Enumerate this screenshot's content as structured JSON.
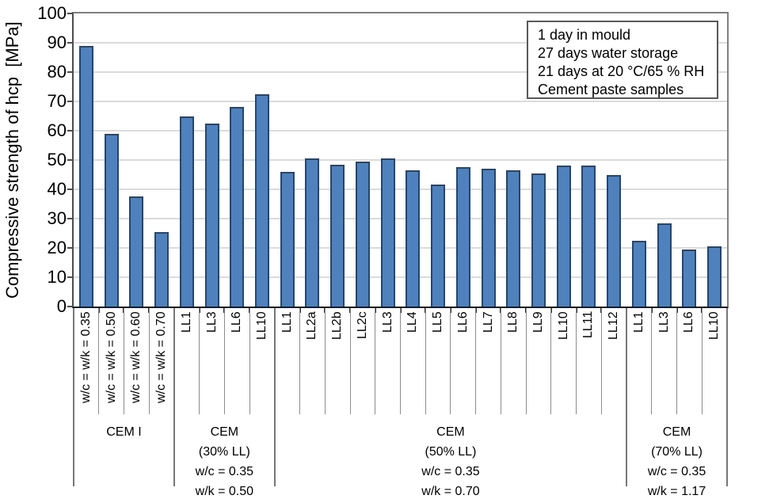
{
  "chart_data": {
    "type": "bar",
    "title": "",
    "ylabel": "Compressive strength of hcp  [MPa]",
    "xlabel": "",
    "ylim": [
      0,
      100
    ],
    "ytick_step": 10,
    "grid": true,
    "legend_position": "top-right-inside",
    "annotation_lines": [
      "1 day in mould",
      "27 days water storage",
      "21 days at 20 °C/65 % RH",
      "Cement paste samples"
    ],
    "categories": [
      "w/c = w/k = 0.35",
      "w/c = w/k = 0.50",
      "w/c = w/k = 0.60",
      "w/c = w/k = 0.70",
      "LL1",
      "LL3",
      "LL6",
      "LL10",
      "LL1",
      "LL2a",
      "LL2b",
      "LL2c",
      "LL3",
      "LL4",
      "LL5",
      "LL6",
      "LL7",
      "LL8",
      "LL9",
      "LL10",
      "LL11",
      "LL12",
      "LL1",
      "LL3",
      "LL6",
      "LL10"
    ],
    "values": [
      89,
      59,
      37.5,
      25.5,
      65,
      62.5,
      68,
      72.5,
      46,
      50.5,
      48.5,
      49.5,
      50.5,
      46.5,
      41.5,
      47.5,
      47,
      46.5,
      45.5,
      48,
      48,
      45,
      22.5,
      28.5,
      19.5,
      20.5
    ],
    "groups": [
      {
        "span": 4,
        "label_lines": [
          "CEM I"
        ]
      },
      {
        "span": 4,
        "label_lines": [
          "CEM",
          "(30% LL)",
          "w/c = 0.35",
          "w/k = 0.50"
        ]
      },
      {
        "span": 14,
        "label_lines": [
          "CEM",
          "(50% LL)",
          "w/c = 0.35",
          "w/k = 0.70"
        ]
      },
      {
        "span": 4,
        "label_lines": [
          "CEM",
          "(70% LL)",
          "w/c = 0.35",
          "w/k = 1.17"
        ]
      }
    ],
    "colors": {
      "bar_fill": "#4F81BD",
      "bar_border": "#24466E",
      "gridline": "#DBDBDB",
      "plot_border": "#7F7F7F",
      "axis": "#1A1A1A"
    }
  }
}
